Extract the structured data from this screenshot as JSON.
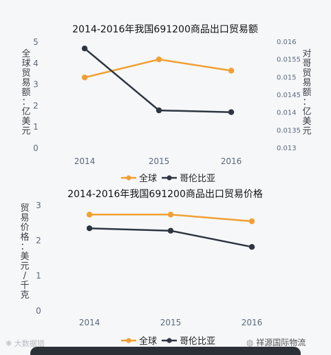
{
  "colors": {
    "global": "#f0a033",
    "colombia": "#2d3640",
    "axis_text": "#3a3f45",
    "tick_text": "#5a6a7d",
    "grid": "#d8dce2"
  },
  "chart_data": [
    {
      "type": "line",
      "title": "2014-2016年我国691200商品出口贸易额",
      "ylabel": "全球贸易额：亿美元",
      "y2label": "对哥贸易额：亿美元",
      "categories": [
        "2014",
        "2015",
        "2016"
      ],
      "ylim": [
        0,
        5
      ],
      "yticks": [
        "0",
        "1",
        "2",
        "3",
        "4",
        "5"
      ],
      "y2lim": [
        0.013,
        0.016
      ],
      "y2ticks": [
        "0.013",
        "0.0135",
        "0.014",
        "0.0145",
        "0.015",
        "0.0155",
        "0.016"
      ],
      "series": [
        {
          "name": "全球",
          "axis": "left",
          "values": [
            3.3,
            4.15,
            3.62
          ]
        },
        {
          "name": "哥伦比亚",
          "axis": "right",
          "values": [
            0.0158,
            0.01405,
            0.014
          ]
        }
      ],
      "legend": "bottom"
    },
    {
      "type": "line",
      "title": "2014-2016年我国691200商品出口贸易价格",
      "ylabel": "贸易价格：美元/千克",
      "categories": [
        "2014",
        "2015",
        "2016"
      ],
      "ylim": [
        0,
        3
      ],
      "yticks": [
        "0",
        "1",
        "2",
        "3"
      ],
      "series": [
        {
          "name": "全球",
          "values": [
            2.72,
            2.72,
            2.53
          ]
        },
        {
          "name": "哥伦比亚",
          "values": [
            2.33,
            2.26,
            1.8
          ]
        }
      ],
      "legend": "bottom"
    }
  ],
  "footer": {
    "left_watermark": "大数据猎",
    "brand": "祥源国际物流"
  }
}
